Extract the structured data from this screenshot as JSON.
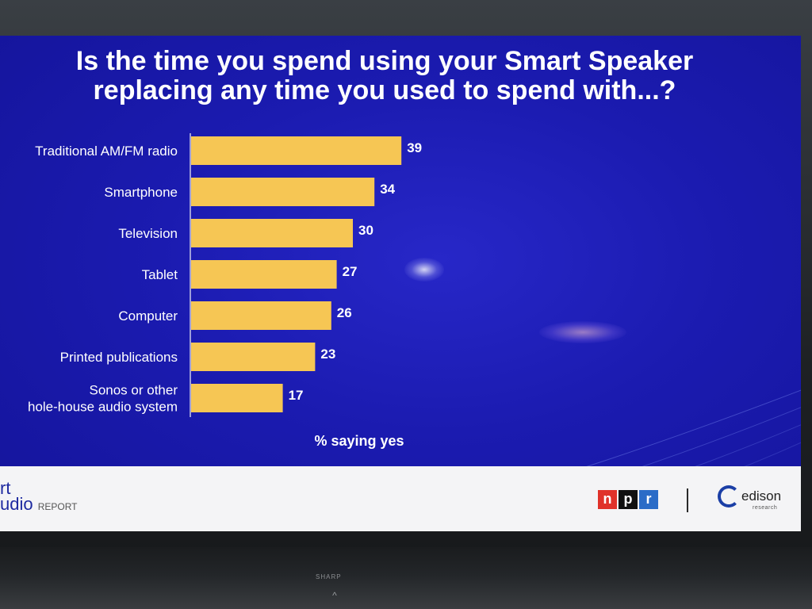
{
  "slide": {
    "title_line1": "Is the time you spend using your Smart Speaker",
    "title_line2": "replacing any time you used to spend with...?"
  },
  "chart_data": {
    "type": "bar",
    "orientation": "horizontal",
    "title": "Is the time you spend using your Smart Speaker replacing any time you used to spend with...?",
    "xlabel": "% saying yes",
    "ylabel": "",
    "categories": [
      [
        "Traditional AM/FM radio"
      ],
      [
        "Smartphone"
      ],
      [
        "Television"
      ],
      [
        "Tablet"
      ],
      [
        "Computer"
      ],
      [
        "Printed publications"
      ],
      [
        "Sonos or other",
        "hole-house audio system"
      ]
    ],
    "values": [
      39,
      34,
      30,
      27,
      26,
      23,
      17
    ],
    "data_labels": [
      "39",
      "34",
      "30",
      "27",
      "26",
      "23",
      "17"
    ],
    "xlim": [
      0,
      39
    ],
    "grid": false,
    "bar_color": "#f6c654"
  },
  "footer": {
    "report_logo_line1": "rt",
    "report_logo_line2": "udio",
    "report_logo_small": "REPORT",
    "npr_letters": [
      "n",
      "p",
      "r"
    ],
    "edison_word": "edison",
    "edison_sub": "research"
  },
  "tv": {
    "brand": "SHARP",
    "arrow": "^"
  }
}
